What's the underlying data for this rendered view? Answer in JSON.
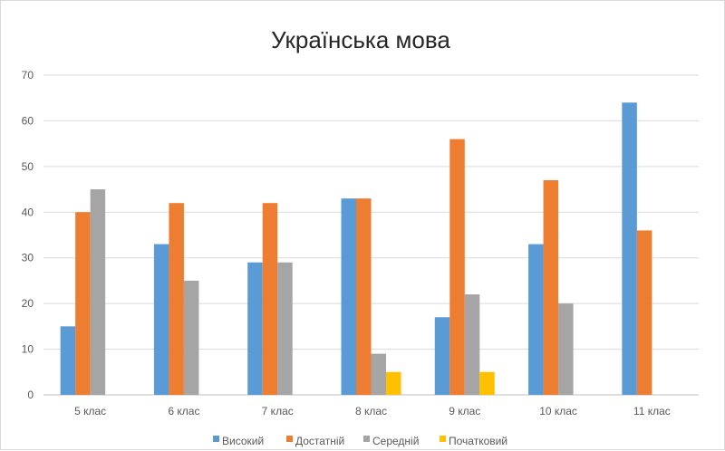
{
  "chart_data": {
    "type": "bar",
    "title": "Українська мова",
    "categories": [
      "5 клас",
      "6 клас",
      "7 клас",
      "8 клас",
      "9 клас",
      "10 клас",
      "11 клас"
    ],
    "series": [
      {
        "name": "Високий",
        "color": "#5B9BD5",
        "values": [
          15,
          33,
          29,
          43,
          17,
          33,
          64
        ]
      },
      {
        "name": "Достатній",
        "color": "#ED7D31",
        "values": [
          40,
          42,
          42,
          43,
          56,
          47,
          36
        ]
      },
      {
        "name": "Середній",
        "color": "#A5A5A5",
        "values": [
          45,
          25,
          29,
          9,
          22,
          20,
          0
        ]
      },
      {
        "name": "Початковий",
        "color": "#FFC000",
        "values": [
          0,
          0,
          0,
          5,
          5,
          0,
          0
        ]
      }
    ],
    "yticks": [
      "0",
      "10",
      "20",
      "30",
      "40",
      "50",
      "60",
      "70"
    ],
    "ylim": [
      0,
      70
    ],
    "grid": true,
    "legend_position": "bottom"
  }
}
